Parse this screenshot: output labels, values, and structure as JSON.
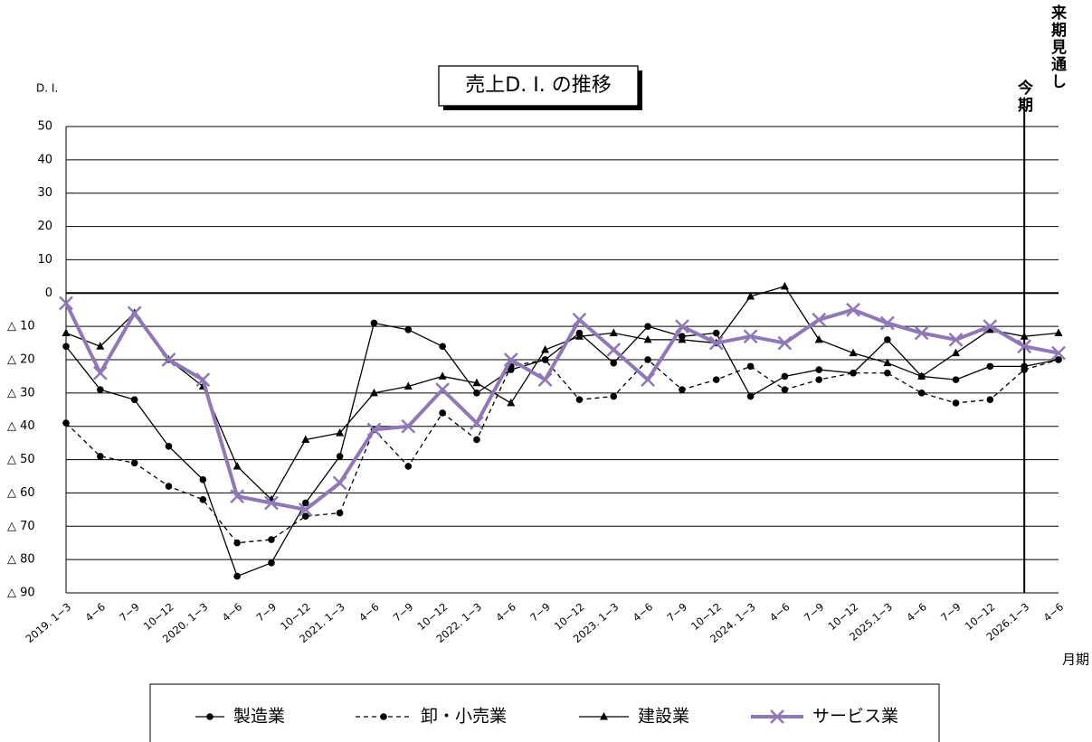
{
  "chart_data": {
    "type": "line",
    "title": "売上D. I. の推移",
    "y_label": "D. I.",
    "x_label": "月期",
    "annotations": {
      "current": "今期",
      "next": "来期見通し"
    },
    "current_period_index": 28,
    "categories": [
      "2019. 1−3",
      "4−6",
      "7−9",
      "10−12",
      "2020. 1−3",
      "4−6",
      "7−9",
      "10−12",
      "2021. 1−3",
      "4−6",
      "7−9",
      "10−12",
      "2022. 1−3",
      "4−6",
      "7−9",
      "10−12",
      "2023. 1−3",
      "4−6",
      "7−9",
      "10−12",
      "2024. 1−3",
      "4−6",
      "7−9",
      "10−12",
      "2025.1−3",
      "4−6",
      "7−9",
      "10−12",
      "2026.1−3",
      "4−6"
    ],
    "ylim": [
      -90,
      50
    ],
    "yticks": [
      50,
      40,
      30,
      20,
      10,
      0,
      {
        "value": -10,
        "label": "△ 10"
      },
      {
        "value": -20,
        "label": "△ 20"
      },
      {
        "value": -30,
        "label": "△ 30"
      },
      {
        "value": -40,
        "label": "△ 40"
      },
      {
        "value": -50,
        "label": "△ 50"
      },
      {
        "value": -60,
        "label": "△ 60"
      },
      {
        "value": -70,
        "label": "△ 70"
      },
      {
        "value": -80,
        "label": "△ 80"
      },
      {
        "value": -90,
        "label": "△ 90"
      }
    ],
    "grid": true,
    "legend": "bottom",
    "series": [
      {
        "name": "製造業",
        "color": "#000000",
        "marker": "circle",
        "line_style": "solid",
        "line_width": 1.3,
        "values": [
          -16,
          -29,
          -32,
          -46,
          -56,
          -85,
          -81,
          -63,
          -49,
          -9,
          -11,
          -16,
          -30,
          -23,
          -20,
          -12,
          -21,
          -10,
          -13,
          -12,
          -31,
          -25,
          -23,
          -24,
          -14,
          -25,
          -26,
          -22,
          -22,
          -20
        ]
      },
      {
        "name": "卸・小売業",
        "color": "#000000",
        "marker": "circle",
        "line_style": "dashed",
        "line_width": 1.3,
        "values": [
          -39,
          -49,
          -51,
          -58,
          -62,
          -75,
          -74,
          -67,
          -66,
          -41,
          -52,
          -36,
          -44,
          -22,
          -20,
          -32,
          -31,
          -20,
          -29,
          -26,
          -22,
          -29,
          -26,
          -24,
          -24,
          -30,
          -33,
          -32,
          -23,
          -20
        ]
      },
      {
        "name": "建設業",
        "color": "#000000",
        "marker": "triangle",
        "line_style": "solid",
        "line_width": 1.3,
        "values": [
          -12,
          -16,
          -6,
          -20,
          -28,
          -52,
          -62,
          -44,
          -42,
          -30,
          -28,
          -25,
          -27,
          -33,
          -17,
          -13,
          -12,
          -14,
          -14,
          -15,
          -1,
          2,
          -14,
          -18,
          -21,
          -25,
          -18,
          -11,
          -13,
          -12
        ]
      },
      {
        "name": "サービス業",
        "color": "#8e78b8",
        "marker": "x",
        "line_style": "solid",
        "line_width": 4,
        "values": [
          -3,
          -24,
          -6,
          -20,
          -26,
          -61,
          -63,
          -65,
          -57,
          -41,
          -40,
          -29,
          -39,
          -20,
          -26,
          -8,
          -17,
          -26,
          -10,
          -15,
          -13,
          -15,
          -8,
          -5,
          -9,
          -12,
          -14,
          -10,
          -16,
          -18
        ]
      }
    ]
  }
}
